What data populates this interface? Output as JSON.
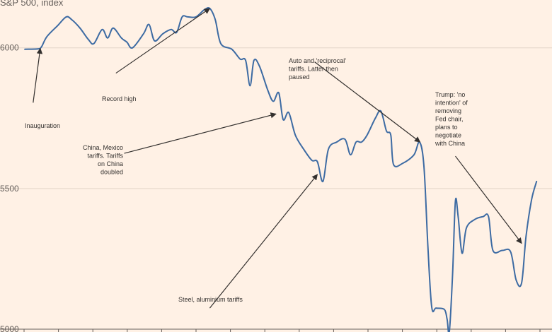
{
  "chart_data": {
    "type": "line",
    "title": "S&P 500, index",
    "ylim": [
      4990,
      6170
    ],
    "y_ticks": [
      5000,
      5500,
      6000
    ],
    "y_tick_labels": [
      "5000",
      "5500",
      "6000"
    ],
    "x_range": [
      0,
      100
    ],
    "colors": {
      "background": "#fff1e5",
      "line": "#3d6ba3",
      "grid": "#e3d5c8",
      "text": "#33302e",
      "arrow": "#33302e"
    },
    "series": [
      {
        "values": [
          [
            4.5,
            5995
          ],
          [
            6.8,
            5996
          ],
          [
            7.5,
            6003
          ],
          [
            8.5,
            6040
          ],
          [
            10.5,
            6080
          ],
          [
            12,
            6110
          ],
          [
            13,
            6100
          ],
          [
            14.5,
            6070
          ],
          [
            16,
            6030
          ],
          [
            17,
            6015
          ],
          [
            18.5,
            6065
          ],
          [
            19.5,
            6035
          ],
          [
            20.5,
            6070
          ],
          [
            22,
            6035
          ],
          [
            23,
            6020
          ],
          [
            24,
            6000
          ],
          [
            26,
            6050
          ],
          [
            27,
            6083
          ],
          [
            28,
            6025
          ],
          [
            29.5,
            6050
          ],
          [
            31,
            6065
          ],
          [
            32,
            6055
          ],
          [
            33,
            6110
          ],
          [
            34,
            6110
          ],
          [
            35.5,
            6110
          ],
          [
            37,
            6135
          ],
          [
            38,
            6140
          ],
          [
            39,
            6100
          ],
          [
            40,
            6015
          ],
          [
            42,
            5995
          ],
          [
            43.5,
            5960
          ],
          [
            44.5,
            5955
          ],
          [
            45.3,
            5865
          ],
          [
            46,
            5955
          ],
          [
            47,
            5935
          ],
          [
            48.5,
            5850
          ],
          [
            49.5,
            5810
          ],
          [
            50.5,
            5840
          ],
          [
            51.3,
            5745
          ],
          [
            52.3,
            5770
          ],
          [
            53.5,
            5690
          ],
          [
            55,
            5640
          ],
          [
            56.5,
            5600
          ],
          [
            57.5,
            5595
          ],
          [
            58.5,
            5525
          ],
          [
            59.5,
            5640
          ],
          [
            61,
            5665
          ],
          [
            62.5,
            5675
          ],
          [
            63.5,
            5620
          ],
          [
            64.5,
            5665
          ],
          [
            65.5,
            5665
          ],
          [
            66.5,
            5690
          ],
          [
            68,
            5750
          ],
          [
            69,
            5775
          ],
          [
            70,
            5705
          ],
          [
            70.8,
            5690
          ],
          [
            71.3,
            5585
          ],
          [
            73,
            5590
          ],
          [
            75,
            5620
          ],
          [
            76,
            5665
          ],
          [
            76.8,
            5580
          ],
          [
            77.5,
            5300
          ],
          [
            78.2,
            5080
          ],
          [
            79,
            5075
          ],
          [
            80.5,
            5070
          ],
          [
            81,
            5035
          ],
          [
            81.4,
            4990
          ],
          [
            82,
            5200
          ],
          [
            82.5,
            5455
          ],
          [
            83,
            5400
          ],
          [
            83.7,
            5270
          ],
          [
            84.5,
            5360
          ],
          [
            86,
            5390
          ],
          [
            87.5,
            5400
          ],
          [
            88.5,
            5400
          ],
          [
            89.3,
            5280
          ],
          [
            91,
            5280
          ],
          [
            92.5,
            5275
          ],
          [
            93.5,
            5175
          ],
          [
            94.5,
            5165
          ],
          [
            95.3,
            5330
          ],
          [
            96.3,
            5460
          ],
          [
            97.2,
            5525
          ]
        ]
      }
    ],
    "annotations": [
      {
        "lines": [
          "Inauguration"
        ],
        "target": [
          7.3,
          5998
        ],
        "from": [
          6,
          5805
        ]
      },
      {
        "lines": [
          "Record high"
        ],
        "target": [
          38,
          6140
        ],
        "from": [
          21,
          5910
        ]
      },
      {
        "lines": [
          "China, Mexico",
          "tariffs. Tariffs",
          "on China",
          "doubled"
        ],
        "target": [
          50,
          5765
        ],
        "from": [
          22.5,
          5625
        ]
      },
      {
        "lines": [
          "Auto and 'reciprocal'",
          "tariffs. Latter then",
          "paused"
        ],
        "target": [
          76.1,
          5665
        ],
        "from": [
          57,
          5950
        ]
      },
      {
        "lines": [
          "Steel, aluminium tariffs"
        ],
        "target": [
          57.5,
          5550
        ],
        "from": [
          38,
          5075
        ]
      },
      {
        "lines": [
          "Trump: 'no",
          "intention' of",
          "removing",
          "Fed chair,",
          "plans to",
          "negotiate",
          "with China"
        ],
        "target": [
          94.5,
          5305
        ],
        "from": [
          82.5,
          5615
        ]
      }
    ]
  }
}
